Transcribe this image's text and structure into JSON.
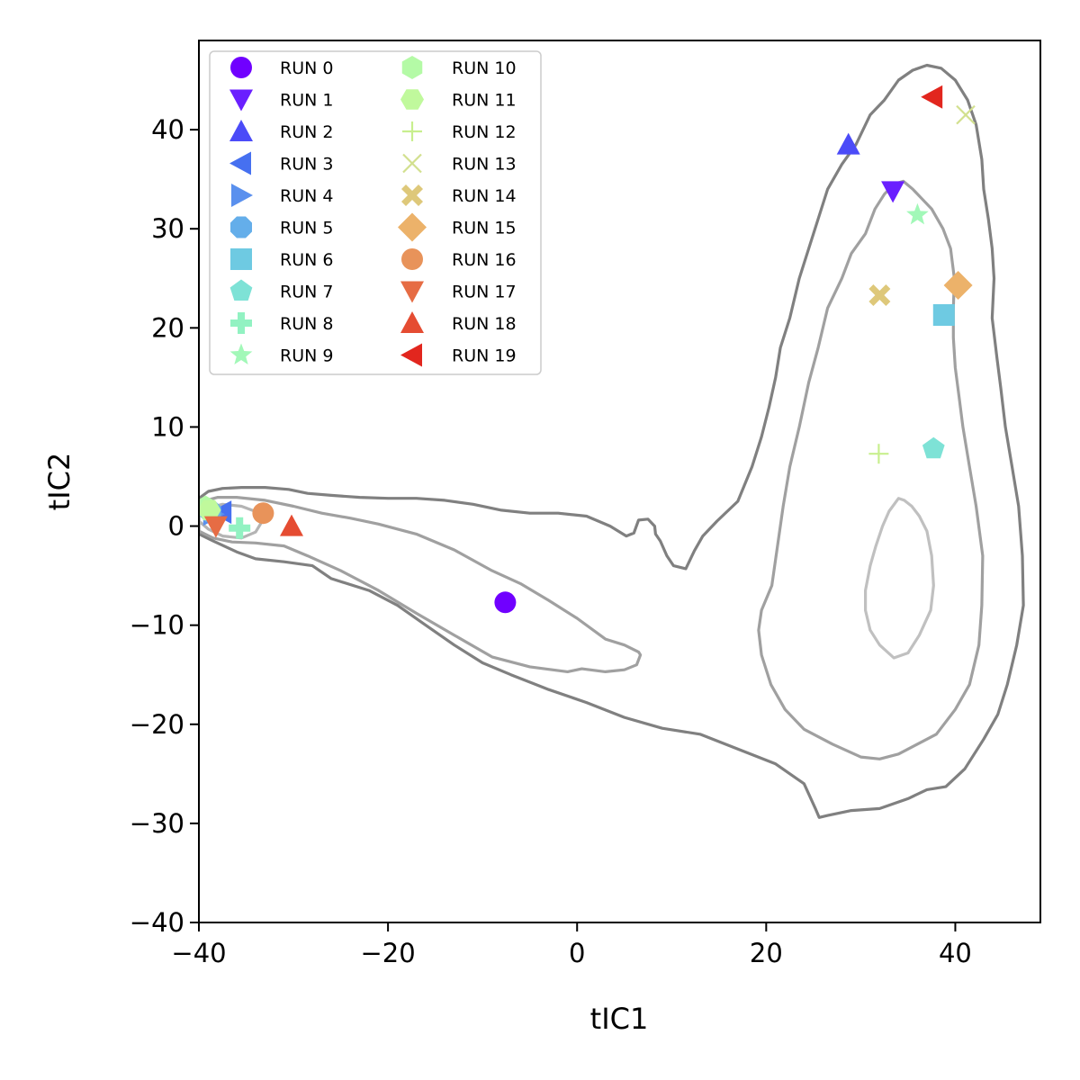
{
  "chart_data": {
    "type": "scatter",
    "xlabel": "tIC1",
    "ylabel": "tIC2",
    "xlim": [
      -40,
      49
    ],
    "ylim": [
      -40,
      49
    ],
    "xticks": [
      -40,
      -20,
      0,
      20,
      40
    ],
    "yticks": [
      -40,
      -30,
      -20,
      -10,
      0,
      10,
      20,
      30,
      40
    ],
    "xtick_labels": [
      "−40",
      "−20",
      "0",
      "20",
      "40"
    ],
    "ytick_labels": [
      "−40",
      "−30",
      "−20",
      "−10",
      "0",
      "10",
      "20",
      "30",
      "40"
    ],
    "legend_position": "top-left",
    "legend_columns": 2,
    "series": [
      {
        "name": "RUN 0",
        "marker": "circle",
        "color": "#7000ff",
        "x": -7.6,
        "y": -7.7
      },
      {
        "name": "RUN 1",
        "marker": "triangle-down",
        "color": "#6a1fff",
        "x": 33.4,
        "y": 33.8
      },
      {
        "name": "RUN 2",
        "marker": "triangle-up",
        "color": "#4b4bf8",
        "x": 28.7,
        "y": 38.5
      },
      {
        "name": "RUN 3",
        "marker": "triangle-left",
        "color": "#4670f0",
        "x": -37.6,
        "y": 1.4
      },
      {
        "name": "RUN 4",
        "marker": "triangle-right",
        "color": "#5a90ee",
        "x": -38.5,
        "y": 1.2
      },
      {
        "name": "RUN 5",
        "marker": "octagon",
        "color": "#64aeea",
        "x": -38.8,
        "y": 1.5
      },
      {
        "name": "RUN 6",
        "marker": "square",
        "color": "#6ecae2",
        "x": 38.8,
        "y": 21.3
      },
      {
        "name": "RUN 7",
        "marker": "pentagon",
        "color": "#7ee2d6",
        "x": 37.7,
        "y": 7.8
      },
      {
        "name": "RUN 8",
        "marker": "plus-filled",
        "color": "#92f2c2",
        "x": -35.7,
        "y": -0.2
      },
      {
        "name": "RUN 9",
        "marker": "star",
        "color": "#a2f8b8",
        "x": 36.0,
        "y": 31.4
      },
      {
        "name": "RUN 10",
        "marker": "hexagon",
        "color": "#b4faa6",
        "x": -39.3,
        "y": 1.9
      },
      {
        "name": "RUN 11",
        "marker": "hexagon2",
        "color": "#c0f99c",
        "x": -38.9,
        "y": 1.6
      },
      {
        "name": "RUN 12",
        "marker": "plus",
        "color": "#c8ef8e",
        "x": 31.9,
        "y": 7.3
      },
      {
        "name": "RUN 13",
        "marker": "x",
        "color": "#d2e08e",
        "x": 41.1,
        "y": 41.5
      },
      {
        "name": "RUN 14",
        "marker": "x-filled",
        "color": "#dec87a",
        "x": 32.0,
        "y": 23.3
      },
      {
        "name": "RUN 15",
        "marker": "diamond",
        "color": "#ecb26a",
        "x": 40.3,
        "y": 24.3
      },
      {
        "name": "RUN 16",
        "marker": "circle",
        "color": "#e8935a",
        "x": -33.2,
        "y": 1.3
      },
      {
        "name": "RUN 17",
        "marker": "triangle-down",
        "color": "#e66c44",
        "x": -38.2,
        "y": 0.0
      },
      {
        "name": "RUN 18",
        "marker": "triangle-up",
        "color": "#e54c32",
        "x": -30.2,
        "y": 0.0
      },
      {
        "name": "RUN 19",
        "marker": "triangle-left",
        "color": "#e2261e",
        "x": 37.6,
        "y": 43.3
      }
    ],
    "contours": [
      {
        "level": "outer",
        "color": "#808080",
        "points": [
          [
            -40,
            -0.8
          ],
          [
            -38.5,
            -1.5
          ],
          [
            -36,
            -2.6
          ],
          [
            -34,
            -3.3
          ],
          [
            -31,
            -3.6
          ],
          [
            -28,
            -4
          ],
          [
            -26,
            -5.3
          ],
          [
            -22,
            -6.5
          ],
          [
            -19,
            -8
          ],
          [
            -16,
            -10
          ],
          [
            -13,
            -12
          ],
          [
            -10,
            -13.8
          ],
          [
            -7,
            -15
          ],
          [
            -3,
            -16.5
          ],
          [
            1,
            -17.8
          ],
          [
            5,
            -19.3
          ],
          [
            9,
            -20.4
          ],
          [
            13,
            -21
          ],
          [
            17,
            -22.5
          ],
          [
            21,
            -24
          ],
          [
            24,
            -26
          ],
          [
            25.2,
            -28.5
          ],
          [
            25.6,
            -29.4
          ],
          [
            26.5,
            -29.2
          ],
          [
            29,
            -28.7
          ],
          [
            32,
            -28.5
          ],
          [
            35,
            -27.5
          ],
          [
            37,
            -26.6
          ],
          [
            39,
            -26.3
          ],
          [
            41,
            -24.5
          ],
          [
            43,
            -21.5
          ],
          [
            44.5,
            -19
          ],
          [
            45.5,
            -16
          ],
          [
            46.5,
            -12
          ],
          [
            47.2,
            -8
          ],
          [
            47.1,
            -3
          ],
          [
            46.7,
            2
          ],
          [
            46,
            6
          ],
          [
            45.3,
            10
          ],
          [
            44.8,
            14
          ],
          [
            44.4,
            17
          ],
          [
            43.9,
            21
          ],
          [
            44.1,
            25
          ],
          [
            43.9,
            28
          ],
          [
            43.5,
            31
          ],
          [
            43,
            34
          ],
          [
            42.8,
            37
          ],
          [
            42.2,
            40.5
          ],
          [
            41.3,
            43
          ],
          [
            40,
            45
          ],
          [
            38.5,
            46.2
          ],
          [
            37,
            46.5
          ],
          [
            35.5,
            46
          ],
          [
            34,
            45
          ],
          [
            32.5,
            43
          ],
          [
            31,
            41.5
          ],
          [
            29.5,
            38.5
          ],
          [
            28,
            36.5
          ],
          [
            26.5,
            34
          ],
          [
            25.5,
            31
          ],
          [
            24.5,
            28
          ],
          [
            23.5,
            25
          ],
          [
            22.5,
            21
          ],
          [
            21.5,
            18
          ],
          [
            21,
            15
          ],
          [
            20.3,
            12
          ],
          [
            19.5,
            9
          ],
          [
            18.5,
            6
          ],
          [
            17,
            2.5
          ],
          [
            14.8,
            0.5
          ],
          [
            13.3,
            -1
          ],
          [
            12.4,
            -2.5
          ],
          [
            11.5,
            -4.3
          ],
          [
            10.2,
            -4
          ],
          [
            9.5,
            -3
          ],
          [
            8.8,
            -1.5
          ],
          [
            8.3,
            -0.8
          ],
          [
            8.2,
            0
          ],
          [
            7.5,
            0.7
          ],
          [
            6.5,
            0.6
          ],
          [
            6,
            -0.7
          ],
          [
            5.2,
            -1
          ],
          [
            3.5,
            0
          ],
          [
            1,
            1
          ],
          [
            -2,
            1.3
          ],
          [
            -5,
            1.3
          ],
          [
            -8,
            1.6
          ],
          [
            -11,
            2.2
          ],
          [
            -14,
            2.6
          ],
          [
            -17,
            2.8
          ],
          [
            -20,
            2.8
          ],
          [
            -23,
            2.9
          ],
          [
            -26,
            3.1
          ],
          [
            -28.5,
            3.3
          ],
          [
            -30.5,
            3.7
          ],
          [
            -33,
            3.9
          ],
          [
            -35.5,
            3.9
          ],
          [
            -37.5,
            3.8
          ],
          [
            -39,
            3.5
          ],
          [
            -40,
            2.8
          ]
        ]
      },
      {
        "level": "middle",
        "color": "#a0a0a0",
        "points": [
          [
            -40,
            -0.5
          ],
          [
            -38.5,
            -1.2
          ],
          [
            -36.5,
            -1.6
          ],
          [
            -34,
            -1.7
          ],
          [
            -31,
            -2
          ],
          [
            -28.5,
            -3
          ],
          [
            -25,
            -4.5
          ],
          [
            -21,
            -6.5
          ],
          [
            -17,
            -8.8
          ],
          [
            -13,
            -11
          ],
          [
            -9,
            -13.2
          ],
          [
            -5,
            -14.2
          ],
          [
            -1,
            -14.7
          ],
          [
            0.5,
            -14.4
          ],
          [
            3,
            -14.7
          ],
          [
            5,
            -14.5
          ],
          [
            6.3,
            -14
          ],
          [
            6.7,
            -13
          ],
          [
            6.5,
            -12.7
          ],
          [
            5,
            -12
          ],
          [
            3,
            -11.4
          ],
          [
            0,
            -9.3
          ],
          [
            -3,
            -7.5
          ],
          [
            -6,
            -5.8
          ],
          [
            -9,
            -4.5
          ],
          [
            -13,
            -2.4
          ],
          [
            -17,
            -0.8
          ],
          [
            -21,
            0.2
          ],
          [
            -24,
            0.8
          ],
          [
            -27,
            1.3
          ],
          [
            -30,
            2
          ],
          [
            -33,
            2.6
          ],
          [
            -36,
            2.9
          ],
          [
            -38,
            2.9
          ],
          [
            -40,
            2.4
          ]
        ]
      },
      {
        "level": "middle-right",
        "color": "#a0a0a0",
        "points": [
          [
            33.5,
            34.5
          ],
          [
            32.5,
            33.5
          ],
          [
            31.5,
            32
          ],
          [
            30.5,
            29.5
          ],
          [
            29,
            27.5
          ],
          [
            28,
            25
          ],
          [
            26.5,
            22
          ],
          [
            25.5,
            18
          ],
          [
            24.5,
            14.5
          ],
          [
            23.5,
            10
          ],
          [
            22.5,
            6
          ],
          [
            21.8,
            2
          ],
          [
            21.2,
            -2
          ],
          [
            20.6,
            -6
          ],
          [
            19.5,
            -8.5
          ],
          [
            19.2,
            -10.5
          ],
          [
            19.5,
            -13
          ],
          [
            20.5,
            -16
          ],
          [
            22,
            -18.5
          ],
          [
            24,
            -20.5
          ],
          [
            27,
            -22
          ],
          [
            30,
            -23.3
          ],
          [
            32,
            -23.5
          ],
          [
            34,
            -23
          ],
          [
            36,
            -22
          ],
          [
            38,
            -21
          ],
          [
            40,
            -18.5
          ],
          [
            41.5,
            -16
          ],
          [
            42.5,
            -12
          ],
          [
            42.8,
            -8
          ],
          [
            42.9,
            -3
          ],
          [
            42.2,
            2
          ],
          [
            41.5,
            6
          ],
          [
            40.8,
            10
          ],
          [
            40.4,
            13
          ],
          [
            40,
            16
          ],
          [
            39.8,
            19
          ],
          [
            39.8,
            22
          ],
          [
            39.9,
            25
          ],
          [
            39.5,
            28
          ],
          [
            38.7,
            30
          ],
          [
            37.5,
            32
          ],
          [
            36.5,
            33
          ],
          [
            35.5,
            34
          ],
          [
            34.5,
            34.8
          ]
        ]
      },
      {
        "level": "inner-right",
        "color": "#c0c0c0",
        "points": [
          [
            34,
            2.8
          ],
          [
            33,
            1.5
          ],
          [
            32.3,
            0
          ],
          [
            31.6,
            -2
          ],
          [
            31,
            -4
          ],
          [
            30.5,
            -6.5
          ],
          [
            30.5,
            -8.5
          ],
          [
            31,
            -10.5
          ],
          [
            32,
            -12
          ],
          [
            33.5,
            -13.3
          ],
          [
            35,
            -12.8
          ],
          [
            36.2,
            -11
          ],
          [
            37.4,
            -8.5
          ],
          [
            37.7,
            -6
          ],
          [
            37.5,
            -3
          ],
          [
            37,
            -0.5
          ],
          [
            36.2,
            1
          ],
          [
            35.4,
            2
          ],
          [
            34.6,
            2.6
          ]
        ]
      },
      {
        "level": "inner-left",
        "color": "#b4b4b4",
        "points": [
          [
            -40,
            0.5
          ],
          [
            -39,
            -0.3
          ],
          [
            -37.5,
            -1
          ],
          [
            -35.5,
            -1.2
          ],
          [
            -34,
            -0.6
          ],
          [
            -33.3,
            0.5
          ],
          [
            -33.8,
            1.4
          ],
          [
            -35.5,
            2
          ],
          [
            -37.5,
            2.2
          ],
          [
            -39.2,
            1.8
          ],
          [
            -40,
            1.1
          ]
        ]
      }
    ]
  }
}
